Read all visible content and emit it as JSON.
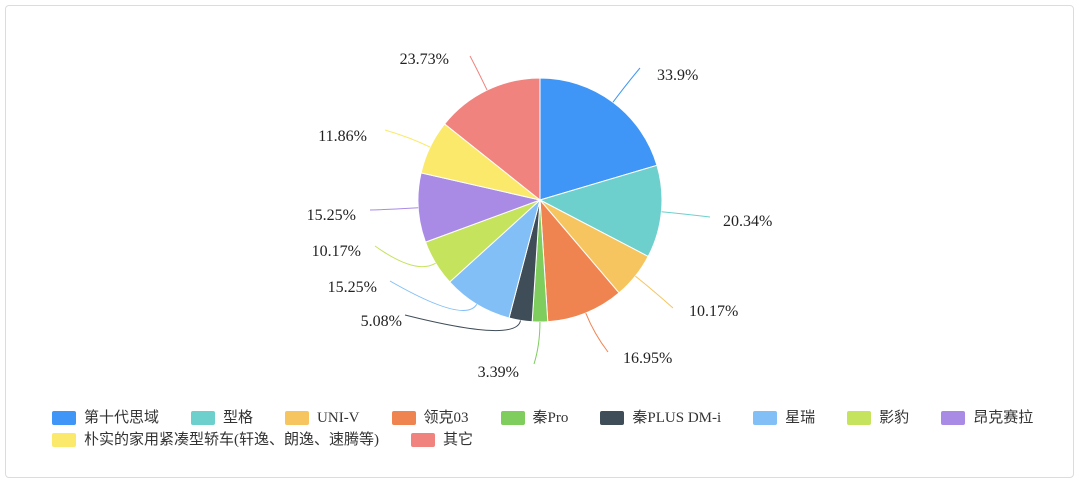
{
  "chart_data": {
    "type": "pie",
    "categories": [
      "第十代思域",
      "型格",
      "UNI-V",
      "领克03",
      "秦Pro",
      "秦PLUS DM-i",
      "星瑞",
      "影豹",
      "昂克赛拉",
      "朴实的家用紧凑型轿车(轩逸、朗逸、速腾等)",
      "其它"
    ],
    "values": [
      33.9,
      20.34,
      10.17,
      16.95,
      3.39,
      5.08,
      15.25,
      10.17,
      15.25,
      11.86,
      23.73
    ],
    "labels": [
      "33.9%",
      "20.34%",
      "10.17%",
      "16.95%",
      "3.39%",
      "5.08%",
      "15.25%",
      "10.17%",
      "15.25%",
      "11.86%",
      "23.73%"
    ],
    "colors": [
      "#4096f6",
      "#6dd0cd",
      "#f6c55f",
      "#f08450",
      "#7ecd5d",
      "#3f4d58",
      "#82bff7",
      "#c5e35d",
      "#a98be5",
      "#fbe96b",
      "#f0837e"
    ],
    "legend_position": "bottom"
  }
}
